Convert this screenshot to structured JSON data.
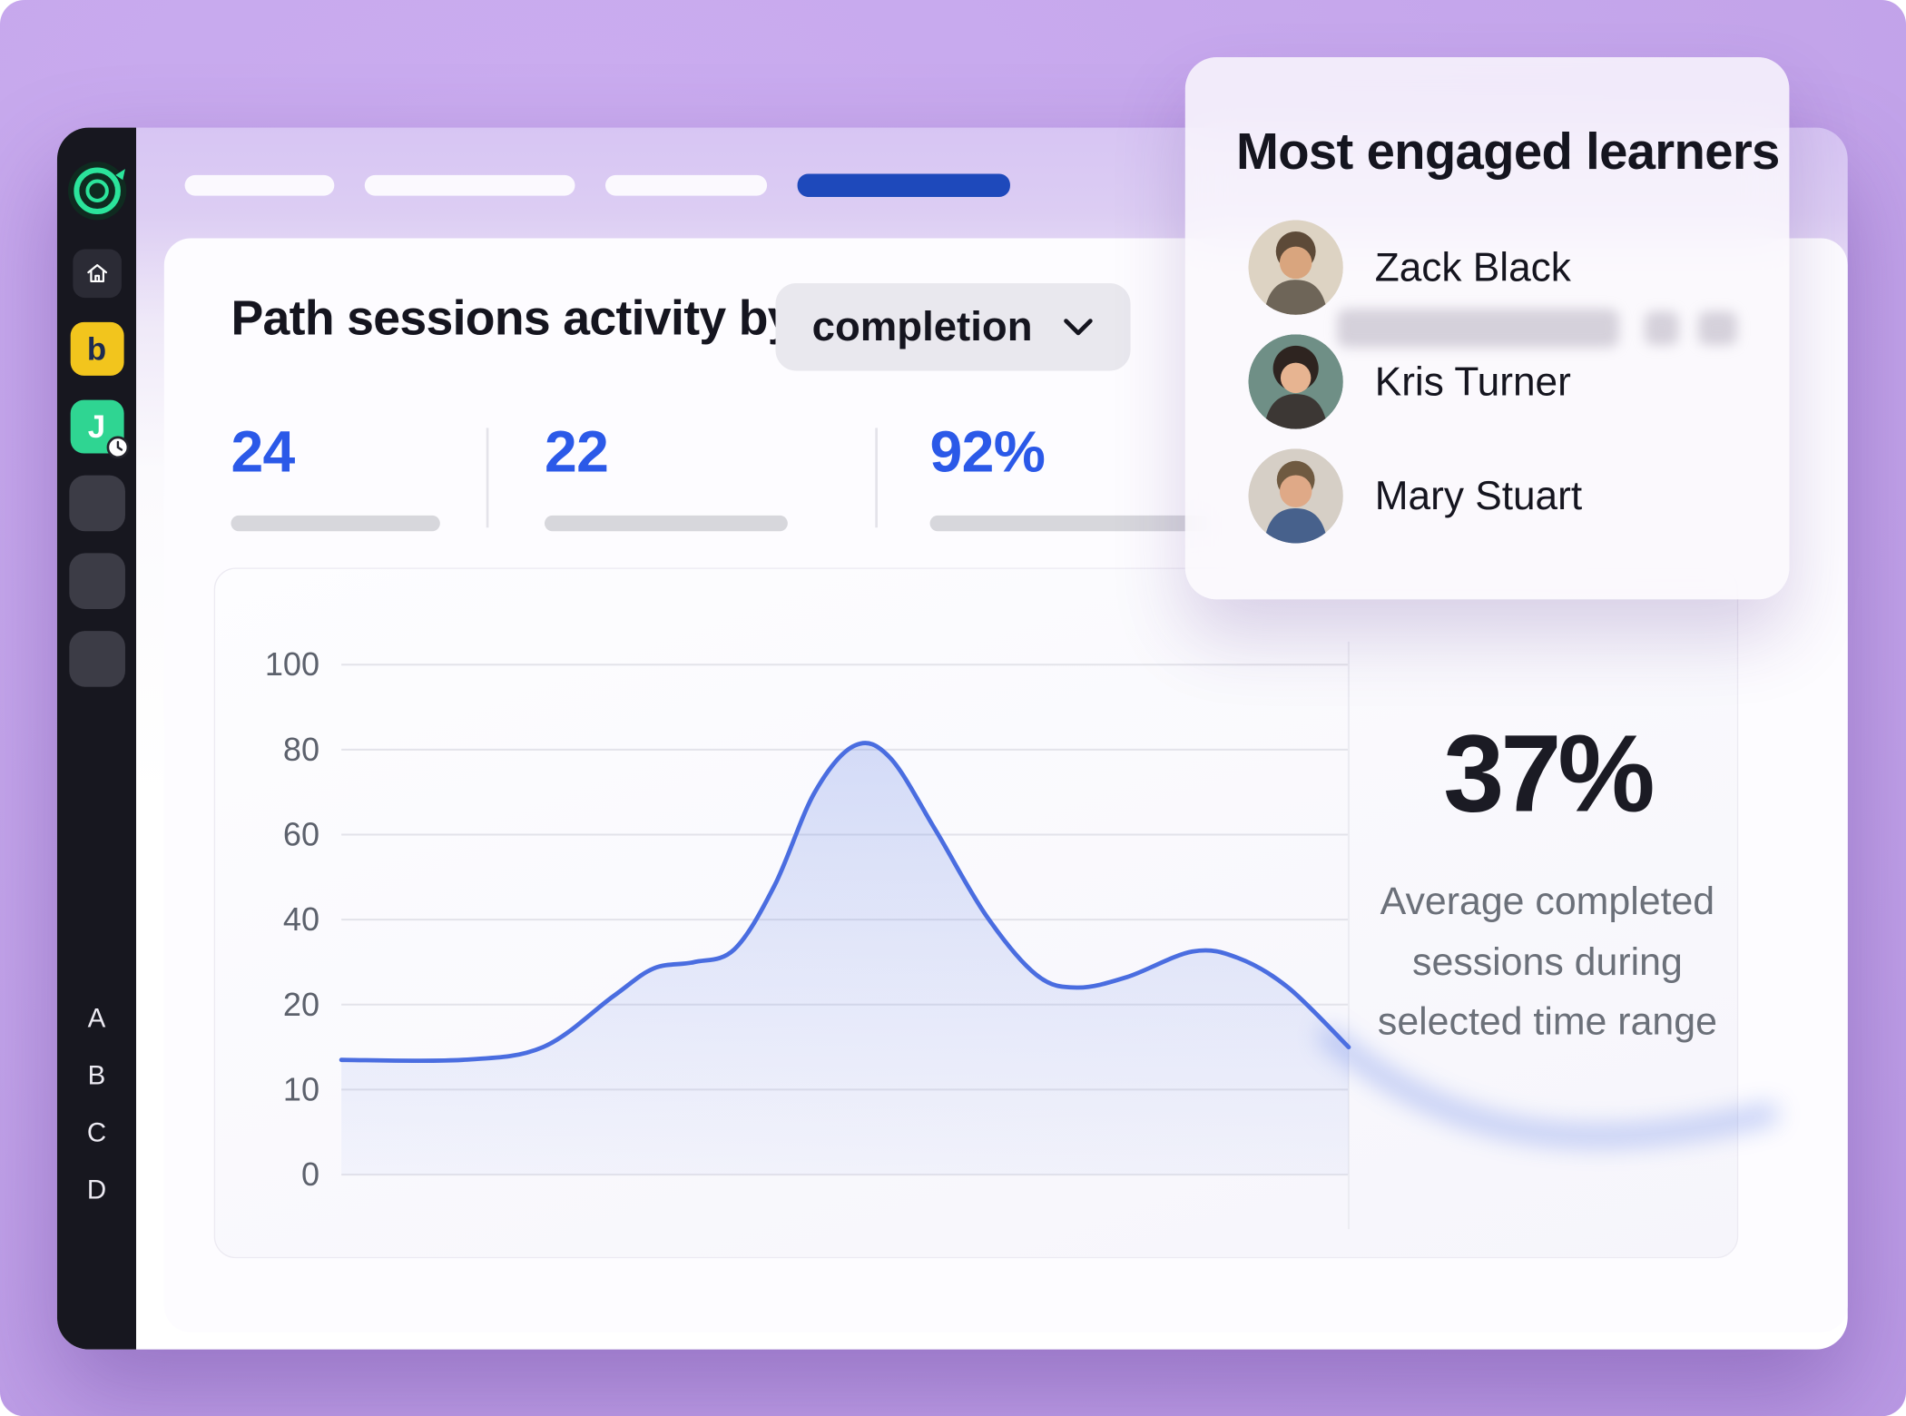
{
  "theme": {
    "bg_purple": "#c3a4ea",
    "accent_blue": "#2b59e8",
    "active_pill_blue": "#1e49bb",
    "sidebar_bg": "#17171f",
    "line_blue": "#4a6de0"
  },
  "sidebar": {
    "apps": [
      {
        "glyph": "b",
        "bg": "#f2c51d",
        "fg": "#1d2b50"
      },
      {
        "glyph": "J",
        "bg": "#2fd592",
        "fg": "#ffffff"
      }
    ],
    "letters": [
      "A",
      "B",
      "C",
      "D"
    ]
  },
  "header": {
    "title": "Path sessions activity by",
    "dropdown": {
      "selected": "completion"
    }
  },
  "stats": [
    {
      "value": "24"
    },
    {
      "value": "22"
    },
    {
      "value": "92%"
    }
  ],
  "chart_data": {
    "type": "area",
    "title": "Path sessions activity by completion",
    "y_ticks": [
      100,
      80,
      60,
      40,
      20,
      10,
      0
    ],
    "grid": true,
    "legend": "none",
    "line_color": "#4a6de0",
    "points": [
      {
        "x": 0.0,
        "v": 13.5
      },
      {
        "x": 0.12,
        "v": 13.5
      },
      {
        "x": 0.2,
        "v": 15
      },
      {
        "x": 0.27,
        "v": 22
      },
      {
        "x": 0.31,
        "v": 28.5
      },
      {
        "x": 0.35,
        "v": 30
      },
      {
        "x": 0.39,
        "v": 33
      },
      {
        "x": 0.43,
        "v": 48
      },
      {
        "x": 0.47,
        "v": 70
      },
      {
        "x": 0.51,
        "v": 81
      },
      {
        "x": 0.545,
        "v": 78
      },
      {
        "x": 0.59,
        "v": 61
      },
      {
        "x": 0.64,
        "v": 41
      },
      {
        "x": 0.69,
        "v": 27
      },
      {
        "x": 0.73,
        "v": 24
      },
      {
        "x": 0.78,
        "v": 26.5
      },
      {
        "x": 0.845,
        "v": 32.5
      },
      {
        "x": 0.89,
        "v": 31
      },
      {
        "x": 0.94,
        "v": 24
      },
      {
        "x": 1.0,
        "v": 15
      }
    ]
  },
  "summary": {
    "value": "37%",
    "caption": "Average completed sessions during selected time range"
  },
  "learners": {
    "title": "Most engaged learners",
    "items": [
      {
        "name": "Zack Black",
        "avatar": {
          "bg": "#ddd3c3",
          "hair": "#5d4a38",
          "skin": "#d9a57e",
          "shirt": "#6e6558"
        }
      },
      {
        "name": "Kris Turner",
        "avatar": {
          "bg": "#6f8f86",
          "hair": "#2e2420",
          "skin": "#e7b491",
          "shirt": "#3c3734"
        }
      },
      {
        "name": "Mary Stuart",
        "avatar": {
          "bg": "#d6cfc6",
          "hair": "#6f5a41",
          "skin": "#dfa987",
          "shirt": "#47618c"
        }
      }
    ]
  }
}
